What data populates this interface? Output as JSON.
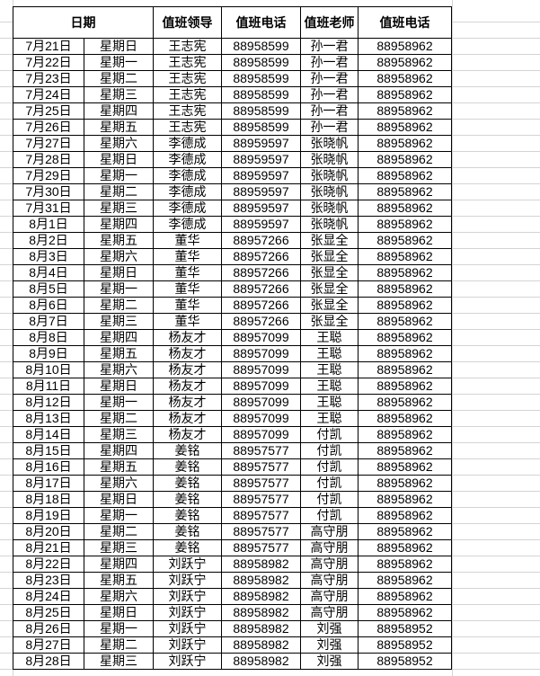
{
  "header": {
    "date": "日期",
    "leader": "值班领导",
    "leader_phone": "值班电话",
    "teacher": "值班老师",
    "teacher_phone": "值班电话"
  },
  "rows": [
    [
      "7月21日",
      "星期日",
      "王志宪",
      "88958599",
      "孙一君",
      "88958962"
    ],
    [
      "7月22日",
      "星期一",
      "王志宪",
      "88958599",
      "孙一君",
      "88958962"
    ],
    [
      "7月23日",
      "星期二",
      "王志宪",
      "88958599",
      "孙一君",
      "88958962"
    ],
    [
      "7月24日",
      "星期三",
      "王志宪",
      "88958599",
      "孙一君",
      "88958962"
    ],
    [
      "7月25日",
      "星期四",
      "王志宪",
      "88958599",
      "孙一君",
      "88958962"
    ],
    [
      "7月26日",
      "星期五",
      "王志宪",
      "88958599",
      "孙一君",
      "88958962"
    ],
    [
      "7月27日",
      "星期六",
      "李德成",
      "88959597",
      "张晓帆",
      "88958962"
    ],
    [
      "7月28日",
      "星期日",
      "李德成",
      "88959597",
      "张晓帆",
      "88958962"
    ],
    [
      "7月29日",
      "星期一",
      "李德成",
      "88959597",
      "张晓帆",
      "88958962"
    ],
    [
      "7月30日",
      "星期二",
      "李德成",
      "88959597",
      "张晓帆",
      "88958962"
    ],
    [
      "7月31日",
      "星期三",
      "李德成",
      "88959597",
      "张晓帆",
      "88958962"
    ],
    [
      "8月1日",
      "星期四",
      "李德成",
      "88959597",
      "张晓帆",
      "88958962"
    ],
    [
      "8月2日",
      "星期五",
      "董华",
      "88957266",
      "张显全",
      "88958962"
    ],
    [
      "8月3日",
      "星期六",
      "董华",
      "88957266",
      "张显全",
      "88958962"
    ],
    [
      "8月4日",
      "星期日",
      "董华",
      "88957266",
      "张显全",
      "88958962"
    ],
    [
      "8月5日",
      "星期一",
      "董华",
      "88957266",
      "张显全",
      "88958962"
    ],
    [
      "8月6日",
      "星期二",
      "董华",
      "88957266",
      "张显全",
      "88958962"
    ],
    [
      "8月7日",
      "星期三",
      "董华",
      "88957266",
      "张显全",
      "88958962"
    ],
    [
      "8月8日",
      "星期四",
      "杨友才",
      "88957099",
      "王聪",
      "88958962"
    ],
    [
      "8月9日",
      "星期五",
      "杨友才",
      "88957099",
      "王聪",
      "88958962"
    ],
    [
      "8月10日",
      "星期六",
      "杨友才",
      "88957099",
      "王聪",
      "88958962"
    ],
    [
      "8月11日",
      "星期日",
      "杨友才",
      "88957099",
      "王聪",
      "88958962"
    ],
    [
      "8月12日",
      "星期一",
      "杨友才",
      "88957099",
      "王聪",
      "88958962"
    ],
    [
      "8月13日",
      "星期二",
      "杨友才",
      "88957099",
      "王聪",
      "88958962"
    ],
    [
      "8月14日",
      "星期三",
      "杨友才",
      "88957099",
      "付凯",
      "88958962"
    ],
    [
      "8月15日",
      "星期四",
      "姜铭",
      "88957577",
      "付凯",
      "88958962"
    ],
    [
      "8月16日",
      "星期五",
      "姜铭",
      "88957577",
      "付凯",
      "88958962"
    ],
    [
      "8月17日",
      "星期六",
      "姜铭",
      "88957577",
      "付凯",
      "88958962"
    ],
    [
      "8月18日",
      "星期日",
      "姜铭",
      "88957577",
      "付凯",
      "88958962"
    ],
    [
      "8月19日",
      "星期一",
      "姜铭",
      "88957577",
      "付凯",
      "88958962"
    ],
    [
      "8月20日",
      "星期二",
      "姜铭",
      "88957577",
      "高守朋",
      "88958962"
    ],
    [
      "8月21日",
      "星期三",
      "姜铭",
      "88957577",
      "高守朋",
      "88958962"
    ],
    [
      "8月22日",
      "星期四",
      "刘跃宁",
      "88958982",
      "高守朋",
      "88958962"
    ],
    [
      "8月23日",
      "星期五",
      "刘跃宁",
      "88958982",
      "高守朋",
      "88958962"
    ],
    [
      "8月24日",
      "星期六",
      "刘跃宁",
      "88958982",
      "高守朋",
      "88958962"
    ],
    [
      "8月25日",
      "星期日",
      "刘跃宁",
      "88958982",
      "高守朋",
      "88958962"
    ],
    [
      "8月26日",
      "星期一",
      "刘跃宁",
      "88958982",
      "刘强",
      "88958952"
    ],
    [
      "8月27日",
      "星期二",
      "刘跃宁",
      "88958982",
      "刘强",
      "88958952"
    ],
    [
      "8月28日",
      "星期三",
      "刘跃宁",
      "88958982",
      "刘强",
      "88958952"
    ]
  ]
}
